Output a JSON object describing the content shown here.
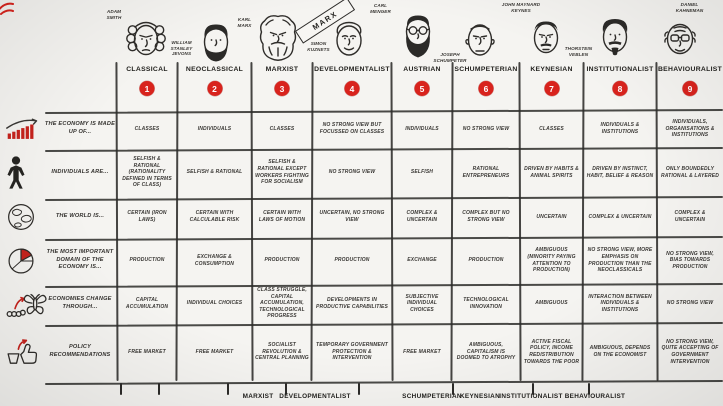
{
  "marx_banner": "MARX",
  "economists": [
    {
      "name": "ADAM SMITH",
      "school": "CLASSICAL",
      "number": "1"
    },
    {
      "name": "WILLIAM STANLEY JEVONS",
      "school": "NEOCLASSICAL",
      "number": "2"
    },
    {
      "name": "KARL MARX",
      "school": "MARXIST",
      "number": "3"
    },
    {
      "name": "SIMON KUZNETS",
      "school": "DEVELOPMENTALIST",
      "number": "4"
    },
    {
      "name": "CARL MENGER",
      "school": "AUSTRIAN",
      "number": "5"
    },
    {
      "name": "JOSEPH SCHUMPETER",
      "school": "SCHUMPETERIAN",
      "number": "6"
    },
    {
      "name": "JOHN MAYNARD KEYNES",
      "school": "KEYNESIAN",
      "number": "7"
    },
    {
      "name": "THORSTEIN VEBLEN",
      "school": "INSTITUTIONALIST",
      "number": "8"
    },
    {
      "name": "DANIEL KAHNEMAN",
      "school": "BEHAVIOURALIST",
      "number": "9"
    }
  ],
  "rows": [
    {
      "label": "THE ECONOMY IS MADE UP OF...",
      "icon": "bar-chart-growth-icon",
      "cells": [
        "CLASSES",
        "INDIVIDUALS",
        "CLASSES",
        "NO STRONG VIEW BUT FOCUSSED ON CLASSES",
        "INDIVIDUALS",
        "NO STRONG VIEW",
        "CLASSES",
        "INDIVIDUALS & INSTITUTIONS",
        "INDIVIDUALS, ORGANISATIONS & INSTITUTIONS"
      ]
    },
    {
      "label": "INDIVIDUALS ARE...",
      "icon": "person-icon",
      "cells": [
        "SELFISH & RATIONAL (RATIONALITY DEFINED IN TERMS OF CLASS)",
        "SELFISH & RATIONAL",
        "SELFISH & RATIONAL EXCEPT WORKERS FIGHTING FOR SOCIALISM",
        "NO STRONG VIEW",
        "SELFISH",
        "RATIONAL ENTREPRENEURS",
        "DRIVEN BY HABITS & ANIMAL SPIRITS",
        "DRIVEN BY INSTINCT, HABIT, BELIEF & REASON",
        "ONLY BOUNDEDLY RATIONAL & LAYERED"
      ]
    },
    {
      "label": "THE WORLD IS...",
      "icon": "globe-icon",
      "cells": [
        "CERTAIN (IRON LAWS)",
        "CERTAIN WITH CALCULABLE RISK",
        "CERTAIN WITH LAWS OF MOTION",
        "UNCERTAIN, NO STRONG VIEW",
        "COMPLEX & UNCERTAIN",
        "COMPLEX BUT NO STRONG VIEW",
        "UNCERTAIN",
        "COMPLEX & UNCERTAIN",
        "COMPLEX & UNCERTAIN"
      ]
    },
    {
      "label": "THE MOST IMPORTANT DOMAIN OF THE ECONOMY IS...",
      "icon": "pie-chart-icon",
      "cells": [
        "PRODUCTION",
        "EXCHANGE & CONSUMPTION",
        "PRODUCTION",
        "PRODUCTION",
        "EXCHANGE",
        "PRODUCTION",
        "AMBIGUOUS (MINORITY PAYING ATTENTION TO PRODUCTION)",
        "NO STRONG VIEW, MORE EMPHASIS ON PRODUCTION THAN THE NEOCLASSICALS",
        "NO STRONG VIEW, BIAS TOWARDS PRODUCTION"
      ]
    },
    {
      "label": "ECONOMIES CHANGE THROUGH...",
      "icon": "metamorphosis-icon",
      "cells": [
        "CAPITAL ACCUMULATION",
        "INDIVIDUAL CHOICES",
        "CLASS STRUGGLE, CAPITAL ACCUMULATION, TECHNOLOGICAL PROGRESS",
        "DEVELOPMENTS IN PRODUCTIVE CAPABILITIES",
        "SUBJECTIVE INDIVIDUAL CHOICES",
        "TECHNOLOGICAL INNOVATION",
        "AMBIGUOUS",
        "INTERACTION BETWEEN INDIVIDUALS & INSTITUTIONS",
        "NO STRONG VIEW"
      ]
    },
    {
      "label": "POLICY RECOMMENDATIONS",
      "icon": "thumbs-up-icon",
      "cells": [
        "FREE MARKET",
        "FREE MARKET",
        "SOCIALIST REVOLUTION & CENTRAL PLANNING",
        "TEMPORARY GOVERNMENT PROTECTION & INTERVENTION",
        "FREE MARKET",
        "AMBIGUOUS, CAPITALISM IS DOOMED TO ATROPHY",
        "ACTIVE FISCAL POLICY, INCOME REDISTRIBUTION TOWARDS THE POOR",
        "AMBIGUOUS, DEPENDS ON THE ECONOMIST",
        "NO STRONG VIEW, QUITE ACCEPTING OF GOVERNMENT INTERVENTION"
      ]
    }
  ],
  "footer_labels": [
    "MARXIST",
    "DEVELOPMENTALIST",
    "SCHUMPETERIAN",
    "KEYNESIAN",
    "INSTITUTIONALIST",
    "BEHAVIOURALIST"
  ],
  "colors": {
    "accent_red": "#d8231d",
    "ink": "#2c2b29",
    "background": "#f5f4f1"
  }
}
